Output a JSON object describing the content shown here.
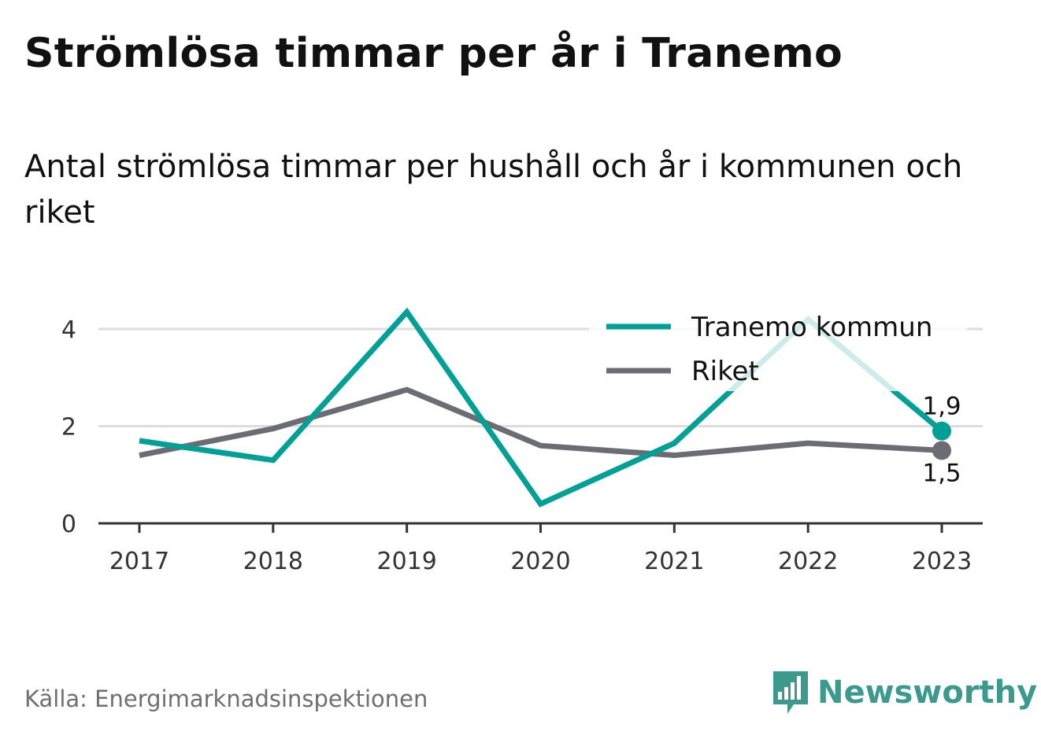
{
  "title": "Strömlösa timmar per år i Tranemo",
  "subtitle": "Antal strömlösa timmar per hushåll och år i kommunen och riket",
  "source": "Källa: Energimarknadsinspektionen",
  "brand": {
    "name": "Newsworthy",
    "color": "#3b9a8d"
  },
  "chart_data": {
    "type": "line",
    "x": [
      "2017",
      "2018",
      "2019",
      "2020",
      "2021",
      "2022",
      "2023"
    ],
    "ylim": [
      0,
      4.4
    ],
    "yticks": [
      0,
      2,
      4
    ],
    "grid": true,
    "legend_position": "top-right",
    "series": [
      {
        "name": "Tranemo kommun",
        "color": "#00a096",
        "values": [
          1.7,
          1.3,
          4.35,
          0.4,
          1.65,
          4.2,
          1.9
        ],
        "end_label": "1,9"
      },
      {
        "name": "Riket",
        "color": "#6c6c74",
        "values": [
          1.4,
          1.95,
          2.75,
          1.6,
          1.4,
          1.65,
          1.5
        ],
        "end_label": "1,5"
      }
    ]
  }
}
